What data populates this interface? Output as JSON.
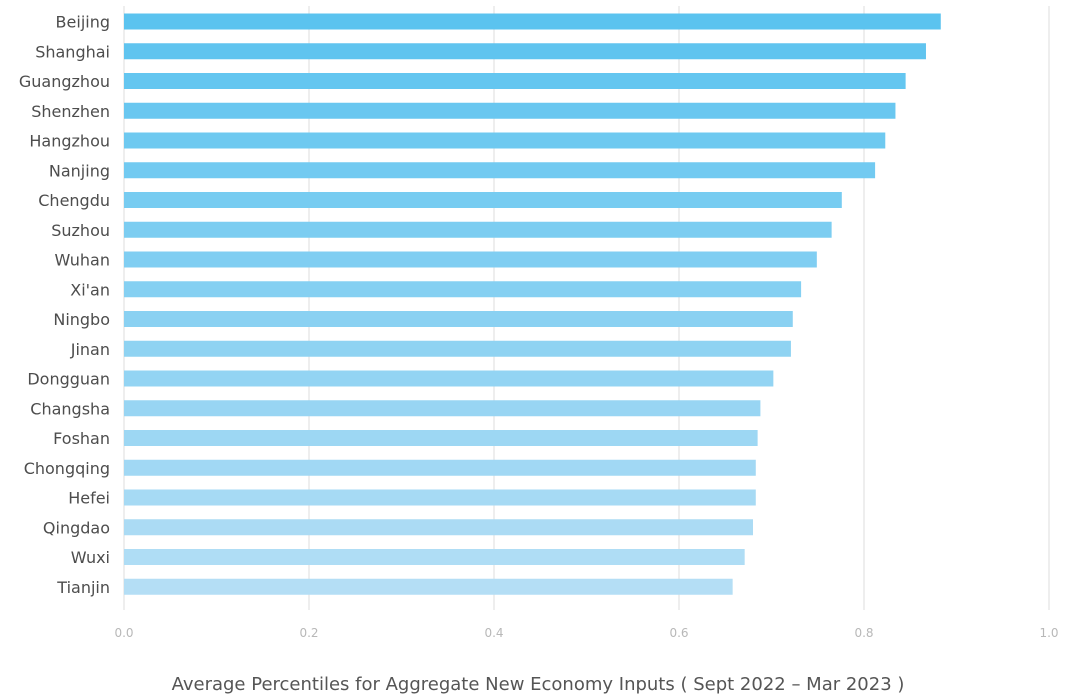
{
  "chart_data": {
    "type": "bar",
    "orientation": "horizontal",
    "categories": [
      "Beijing",
      "Shanghai",
      "Guangzhou",
      "Shenzhen",
      "Hangzhou",
      "Nanjing",
      "Chengdu",
      "Suzhou",
      "Wuhan",
      "Xi'an",
      "Ningbo",
      "Jinan",
      "Dongguan",
      "Changsha",
      "Foshan",
      "Chongqing",
      "Hefei",
      "Qingdao",
      "Wuxi",
      "Tianjin"
    ],
    "values": [
      0.883,
      0.867,
      0.845,
      0.834,
      0.823,
      0.812,
      0.776,
      0.765,
      0.749,
      0.732,
      0.723,
      0.721,
      0.702,
      0.688,
      0.685,
      0.683,
      0.683,
      0.68,
      0.671,
      0.658
    ],
    "xlabel": "Average Percentiles for Aggregate New Economy Inputs ( Sept 2022 – Mar 2023 )",
    "ylabel": "",
    "xlim": [
      0,
      1.0
    ],
    "xticks": [
      "0.0",
      "0.2",
      "0.4",
      "0.6",
      "0.8",
      "1.0"
    ],
    "grid": "vertical",
    "colors": {
      "bar_top": "#5bc3ef",
      "bar_bottom": "#b4def5",
      "grid": "#dddddd",
      "tick_text": "#b8b8b8",
      "label_text": "#4d4d4d"
    }
  }
}
